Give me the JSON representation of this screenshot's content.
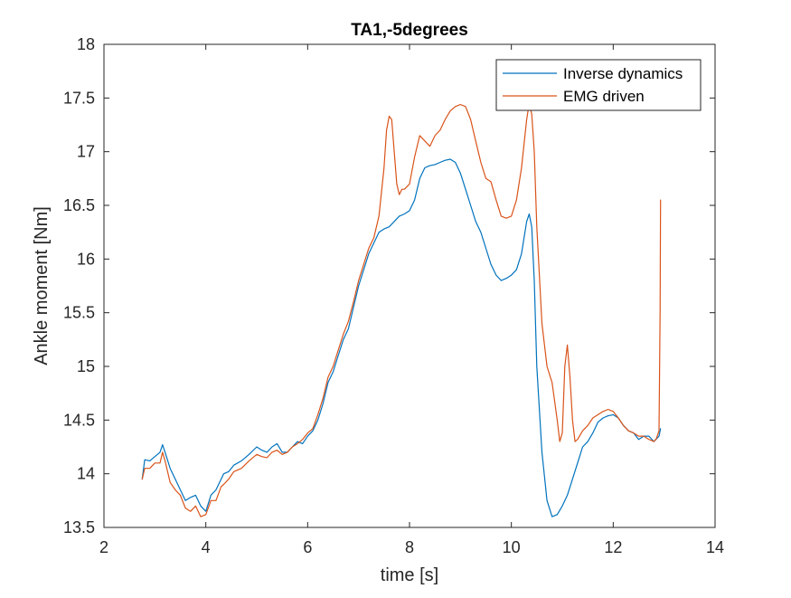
{
  "chart_data": {
    "type": "line",
    "title": "TA1,-5degrees",
    "xlabel": "time  [s]",
    "ylabel": "Ankle moment [Nm]",
    "xlim": [
      2,
      14
    ],
    "ylim": [
      13.5,
      18
    ],
    "xticks": [
      2,
      4,
      6,
      8,
      10,
      12,
      14
    ],
    "yticks": [
      13.5,
      14,
      14.5,
      15,
      15.5,
      16,
      16.5,
      17,
      17.5,
      18
    ],
    "grid": false,
    "legend_position": "top-right",
    "series": [
      {
        "name": "Inverse dynamics",
        "color": "#0072BD",
        "x": [
          2.75,
          2.8,
          2.9,
          3.0,
          3.1,
          3.15,
          3.2,
          3.3,
          3.4,
          3.5,
          3.6,
          3.7,
          3.8,
          3.9,
          4.0,
          4.1,
          4.2,
          4.3,
          4.35,
          4.45,
          4.55,
          4.7,
          4.85,
          5.0,
          5.1,
          5.2,
          5.3,
          5.4,
          5.5,
          5.6,
          5.7,
          5.8,
          5.9,
          6.0,
          6.1,
          6.2,
          6.3,
          6.4,
          6.5,
          6.6,
          6.7,
          6.8,
          6.9,
          7.0,
          7.1,
          7.2,
          7.3,
          7.4,
          7.5,
          7.6,
          7.7,
          7.8,
          7.9,
          8.0,
          8.1,
          8.2,
          8.3,
          8.4,
          8.5,
          8.6,
          8.7,
          8.8,
          8.9,
          9.0,
          9.1,
          9.2,
          9.3,
          9.4,
          9.5,
          9.6,
          9.7,
          9.8,
          9.9,
          10.0,
          10.1,
          10.2,
          10.3,
          10.35,
          10.4,
          10.45,
          10.5,
          10.6,
          10.7,
          10.8,
          10.9,
          11.0,
          11.1,
          11.2,
          11.3,
          11.4,
          11.5,
          11.6,
          11.7,
          11.8,
          11.9,
          12.0,
          12.1,
          12.2,
          12.3,
          12.4,
          12.5,
          12.6,
          12.7,
          12.8,
          12.9,
          12.93
        ],
        "y": [
          13.95,
          14.13,
          14.12,
          14.16,
          14.2,
          14.27,
          14.2,
          14.05,
          13.95,
          13.85,
          13.75,
          13.78,
          13.8,
          13.7,
          13.65,
          13.8,
          13.85,
          13.95,
          14.0,
          14.02,
          14.08,
          14.12,
          14.18,
          14.25,
          14.22,
          14.2,
          14.25,
          14.28,
          14.2,
          14.2,
          14.25,
          14.3,
          14.28,
          14.35,
          14.4,
          14.5,
          14.65,
          14.85,
          14.95,
          15.1,
          15.25,
          15.35,
          15.55,
          15.75,
          15.9,
          16.05,
          16.15,
          16.25,
          16.28,
          16.3,
          16.35,
          16.4,
          16.42,
          16.45,
          16.55,
          16.75,
          16.85,
          16.87,
          16.88,
          16.9,
          16.92,
          16.93,
          16.9,
          16.8,
          16.65,
          16.5,
          16.35,
          16.25,
          16.1,
          15.95,
          15.85,
          15.8,
          15.82,
          15.85,
          15.9,
          16.05,
          16.35,
          16.42,
          16.3,
          15.8,
          15.0,
          14.2,
          13.75,
          13.6,
          13.62,
          13.7,
          13.8,
          13.95,
          14.1,
          14.25,
          14.3,
          14.38,
          14.48,
          14.52,
          14.54,
          14.55,
          14.52,
          14.45,
          14.4,
          14.38,
          14.32,
          14.35,
          14.35,
          14.3,
          14.35,
          14.42
        ]
      },
      {
        "name": "EMG driven",
        "color": "#D95319",
        "x": [
          2.75,
          2.8,
          2.9,
          3.0,
          3.1,
          3.15,
          3.2,
          3.3,
          3.4,
          3.5,
          3.6,
          3.7,
          3.8,
          3.9,
          4.0,
          4.1,
          4.2,
          4.3,
          4.35,
          4.45,
          4.55,
          4.7,
          4.85,
          5.0,
          5.1,
          5.2,
          5.3,
          5.4,
          5.5,
          5.6,
          5.7,
          5.8,
          5.9,
          6.0,
          6.1,
          6.2,
          6.3,
          6.4,
          6.5,
          6.6,
          6.7,
          6.8,
          6.9,
          7.0,
          7.1,
          7.2,
          7.3,
          7.4,
          7.5,
          7.55,
          7.6,
          7.65,
          7.7,
          7.75,
          7.8,
          7.85,
          7.9,
          8.0,
          8.1,
          8.2,
          8.3,
          8.4,
          8.5,
          8.6,
          8.7,
          8.8,
          8.9,
          9.0,
          9.1,
          9.2,
          9.3,
          9.4,
          9.5,
          9.6,
          9.7,
          9.8,
          9.9,
          10.0,
          10.1,
          10.2,
          10.3,
          10.35,
          10.4,
          10.45,
          10.5,
          10.6,
          10.7,
          10.8,
          10.9,
          10.95,
          11.0,
          11.05,
          11.1,
          11.15,
          11.2,
          11.25,
          11.3,
          11.4,
          11.5,
          11.6,
          11.7,
          11.8,
          11.9,
          12.0,
          12.1,
          12.2,
          12.3,
          12.4,
          12.5,
          12.6,
          12.7,
          12.8,
          12.85,
          12.9,
          12.92,
          12.93
        ],
        "y": [
          13.95,
          14.05,
          14.05,
          14.1,
          14.1,
          14.2,
          14.12,
          13.92,
          13.85,
          13.8,
          13.68,
          13.65,
          13.7,
          13.6,
          13.62,
          13.75,
          13.75,
          13.88,
          13.9,
          13.95,
          14.02,
          14.05,
          14.12,
          14.18,
          14.16,
          14.15,
          14.2,
          14.22,
          14.18,
          14.2,
          14.25,
          14.28,
          14.32,
          14.38,
          14.42,
          14.55,
          14.7,
          14.9,
          15.0,
          15.15,
          15.3,
          15.42,
          15.6,
          15.8,
          15.95,
          16.1,
          16.2,
          16.4,
          16.85,
          17.2,
          17.33,
          17.3,
          17.0,
          16.7,
          16.6,
          16.65,
          16.65,
          16.7,
          16.95,
          17.15,
          17.1,
          17.05,
          17.15,
          17.2,
          17.3,
          17.38,
          17.42,
          17.44,
          17.42,
          17.3,
          17.1,
          16.9,
          16.75,
          16.72,
          16.55,
          16.4,
          16.38,
          16.4,
          16.55,
          16.85,
          17.3,
          17.45,
          17.35,
          17.0,
          16.3,
          15.4,
          15.0,
          14.85,
          14.5,
          14.3,
          14.38,
          15.0,
          15.2,
          14.9,
          14.5,
          14.3,
          14.32,
          14.4,
          14.45,
          14.52,
          14.55,
          14.58,
          14.6,
          14.58,
          14.52,
          14.45,
          14.4,
          14.38,
          14.35,
          14.35,
          14.32,
          14.3,
          14.33,
          14.4,
          15.5,
          16.55
        ]
      }
    ]
  }
}
